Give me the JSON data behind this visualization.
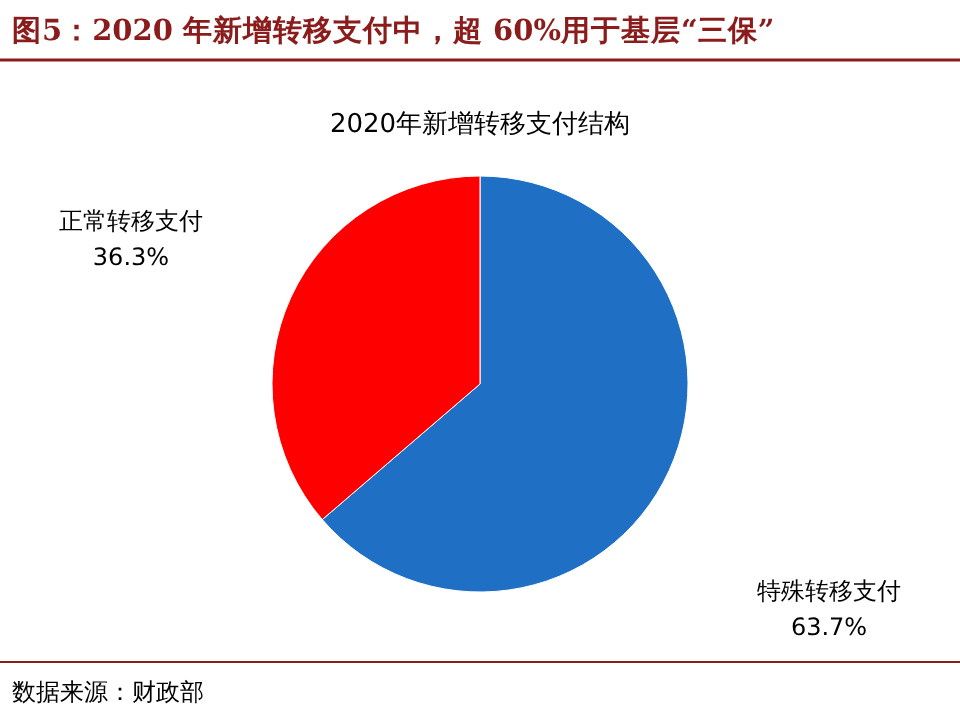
{
  "chart_data": {
    "type": "pie",
    "title": "图5：2020 年新增转移支付中，超 60%用于基层“三保”",
    "subtitle": "2020年新增转移支付结构",
    "categories": [
      "特殊转移支付",
      "正常转移支付"
    ],
    "values": [
      63.7,
      36.3
    ],
    "colors": [
      "#1f6fc5",
      "#ff0000"
    ],
    "value_labels": [
      "63.7%",
      "36.3%"
    ],
    "annotations": [
      "数据来源：财政部"
    ]
  }
}
